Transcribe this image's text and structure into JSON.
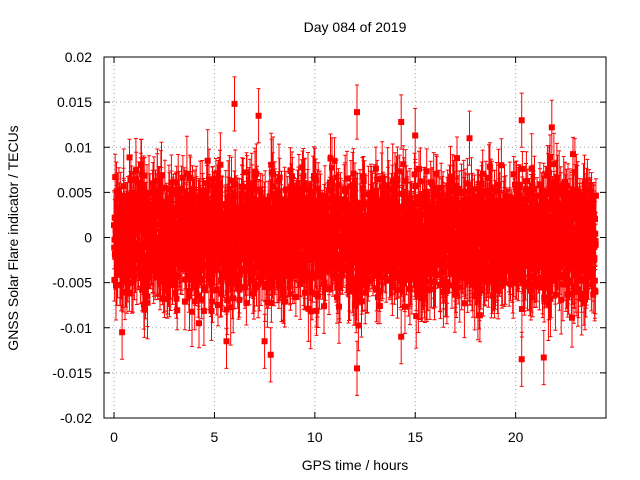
{
  "chart_data": {
    "type": "scatter",
    "title": "Day 084 of 2019",
    "xlabel": "GPS time / hours",
    "ylabel": "GNSS Solar Flare indicator / TECUs",
    "xlim": [
      -0.5,
      24.5
    ],
    "ylim": [
      -0.02,
      0.02
    ],
    "xticks": [
      0,
      5,
      10,
      15,
      20
    ],
    "xtick_labels": [
      "0",
      "5",
      "10",
      "15",
      "20"
    ],
    "yticks": [
      -0.02,
      -0.015,
      -0.01,
      -0.005,
      0,
      0.005,
      0.01,
      0.015,
      0.02
    ],
    "ytick_labels": [
      "-0.02",
      "-0.015",
      "-0.01",
      "-0.005",
      "0",
      "0.005",
      "0.01",
      "0.015",
      "0.02"
    ],
    "grid": true,
    "series": [
      {
        "name": "GNSS Solar Flare indicator",
        "color": "#ff0000",
        "marker": "square",
        "error_bars": true,
        "x_range": [
          0,
          24
        ],
        "sample_interval_hours": 0.0083,
        "typical_value_range": [
          -0.008,
          0.008
        ],
        "typical_error": 0.003,
        "notable_points": [
          {
            "x": 6.0,
            "y": 0.0148,
            "err": 0.003
          },
          {
            "x": 7.2,
            "y": 0.0135,
            "err": 0.003
          },
          {
            "x": 12.1,
            "y": 0.0139,
            "err": 0.003
          },
          {
            "x": 14.3,
            "y": 0.0128,
            "err": 0.003
          },
          {
            "x": 15.0,
            "y": 0.0113,
            "err": 0.003
          },
          {
            "x": 17.7,
            "y": 0.011,
            "err": 0.003
          },
          {
            "x": 20.3,
            "y": 0.013,
            "err": 0.003
          },
          {
            "x": 21.8,
            "y": 0.0122,
            "err": 0.003
          },
          {
            "x": 7.5,
            "y": -0.0115,
            "err": 0.003
          },
          {
            "x": 7.8,
            "y": -0.013,
            "err": 0.003
          },
          {
            "x": 12.1,
            "y": -0.0145,
            "err": 0.003
          },
          {
            "x": 20.3,
            "y": -0.0135,
            "err": 0.003
          },
          {
            "x": 21.4,
            "y": -0.0133,
            "err": 0.003
          },
          {
            "x": 5.6,
            "y": -0.0115,
            "err": 0.003
          },
          {
            "x": 14.3,
            "y": -0.011,
            "err": 0.003
          },
          {
            "x": 0.4,
            "y": -0.0105,
            "err": 0.003
          }
        ]
      }
    ]
  }
}
